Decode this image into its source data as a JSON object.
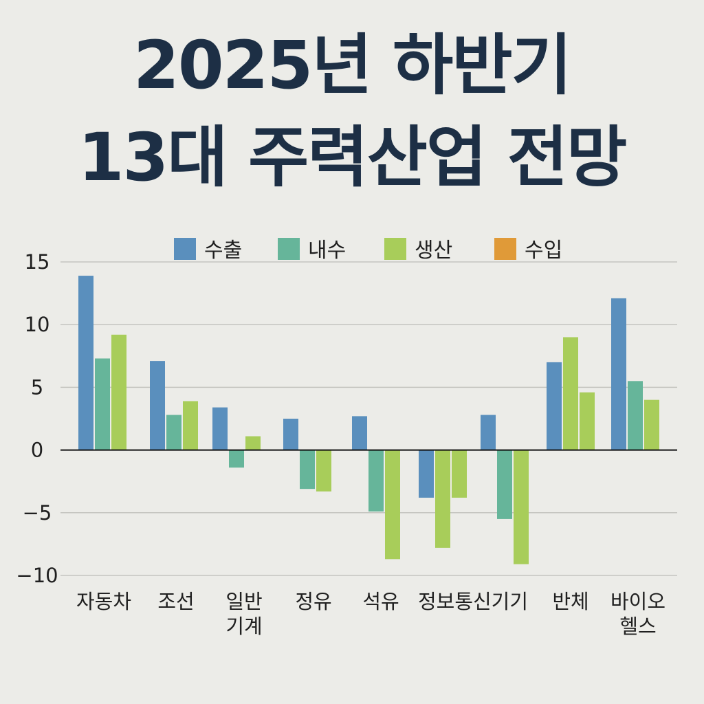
{
  "chart_data": {
    "type": "bar",
    "title": [
      "2025년 하반기",
      "13대 주력산업 전망"
    ],
    "xlabel": "",
    "ylabel": "",
    "ylim": [
      -10,
      15
    ],
    "yticks": [
      15,
      10,
      5,
      0,
      -5,
      -10
    ],
    "ytick_labels": [
      "15",
      "10",
      "5",
      "0",
      "−5",
      "−10"
    ],
    "grid": true,
    "legend_position": "top-center",
    "legend": [
      {
        "name": "수출",
        "color": "#5a8fbd"
      },
      {
        "name": "내수",
        "color": "#66b59a"
      },
      {
        "name": "생산",
        "color": "#a8cd5a"
      },
      {
        "name": "수입",
        "color": "#e09a38"
      }
    ],
    "categories": [
      {
        "lines": [
          "자동차"
        ],
        "bars": [
          {
            "series": "수출",
            "value": 13.9
          },
          {
            "series": "내수",
            "value": 7.3
          },
          {
            "series": "생산",
            "value": 9.2
          }
        ]
      },
      {
        "lines": [
          "조선"
        ],
        "bars": [
          {
            "series": "수출",
            "value": 7.1
          },
          {
            "series": "내수",
            "value": 2.8
          },
          {
            "series": "생산",
            "value": 3.9
          }
        ]
      },
      {
        "lines": [
          "일반",
          "기계"
        ],
        "bars": [
          {
            "series": "수출",
            "value": 3.4
          },
          {
            "series": "내수",
            "value": -1.4
          },
          {
            "series": "생산",
            "value": 1.1
          }
        ]
      },
      {
        "lines": [
          "정유"
        ],
        "bars": [
          {
            "series": "수출",
            "value": 2.5
          },
          {
            "series": "내수",
            "value": -3.1
          },
          {
            "series": "생산",
            "value": -3.3
          }
        ]
      },
      {
        "lines": [
          "석유"
        ],
        "bars": [
          {
            "series": "수출",
            "value": 2.7
          },
          {
            "series": "내수",
            "value": -4.9
          },
          {
            "series": "생산",
            "value": -8.7
          }
        ]
      },
      {
        "lines": [
          "정보통신기기"
        ],
        "bars": [
          {
            "series": "수출",
            "value": -3.8
          },
          {
            "series": "생산",
            "value": -7.8
          },
          {
            "series": "생산",
            "value": -3.8
          }
        ]
      },
      {
        "lines": [
          ""
        ],
        "bars": [
          {
            "series": "수출",
            "value": 2.8
          },
          {
            "series": "내수",
            "value": -5.5
          },
          {
            "series": "생산",
            "value": -9.1
          }
        ]
      },
      {
        "lines": [
          "반체"
        ],
        "bars": [
          {
            "series": "수출",
            "value": 7.0
          },
          {
            "series": "생산",
            "value": 9.0
          },
          {
            "series": "생산",
            "value": 4.6
          }
        ]
      },
      {
        "lines": [
          "바이오",
          "헬스"
        ],
        "bars": [
          {
            "series": "수출",
            "value": 12.1
          },
          {
            "series": "내수",
            "value": 5.5
          },
          {
            "series": "생산",
            "value": 4.0
          }
        ]
      }
    ]
  }
}
